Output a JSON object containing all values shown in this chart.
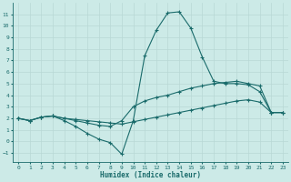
{
  "xlabel": "Humidex (Indice chaleur)",
  "background_color": "#cceae7",
  "grid_color": "#b8d8d5",
  "line_color": "#1a6b6b",
  "x_ticks": [
    0,
    1,
    2,
    3,
    4,
    5,
    6,
    7,
    8,
    9,
    10,
    11,
    12,
    13,
    14,
    15,
    16,
    17,
    18,
    19,
    20,
    21,
    22,
    23
  ],
  "y_ticks": [
    -1,
    0,
    1,
    2,
    3,
    4,
    5,
    6,
    7,
    8,
    9,
    10,
    11
  ],
  "xlim": [
    -0.5,
    23.5
  ],
  "ylim": [
    -1.8,
    12.0
  ],
  "line_peak_x": [
    0,
    1,
    2,
    3,
    4,
    5,
    6,
    7,
    8,
    9,
    10,
    11,
    12,
    13,
    14,
    15,
    16,
    17,
    18,
    19,
    20,
    21,
    22,
    23
  ],
  "line_peak_y": [
    2.0,
    1.8,
    2.1,
    2.2,
    1.8,
    1.3,
    0.7,
    0.2,
    -0.1,
    -1.1,
    1.8,
    7.4,
    9.6,
    11.1,
    11.2,
    9.8,
    7.3,
    5.2,
    5.0,
    5.0,
    4.9,
    4.3,
    2.5,
    2.5
  ],
  "line_mid_x": [
    0,
    1,
    2,
    3,
    4,
    5,
    6,
    7,
    8,
    9,
    10,
    11,
    12,
    13,
    14,
    15,
    16,
    17,
    18,
    19,
    20,
    21,
    22,
    23
  ],
  "line_mid_y": [
    2.0,
    1.8,
    2.1,
    2.2,
    2.0,
    1.8,
    1.6,
    1.4,
    1.3,
    1.8,
    3.0,
    3.5,
    3.8,
    4.0,
    4.3,
    4.6,
    4.8,
    5.0,
    5.1,
    5.2,
    5.0,
    4.8,
    2.5,
    2.5
  ],
  "line_low_x": [
    0,
    1,
    2,
    3,
    4,
    5,
    6,
    7,
    8,
    9,
    10,
    11,
    12,
    13,
    14,
    15,
    16,
    17,
    18,
    19,
    20,
    21,
    22,
    23
  ],
  "line_low_y": [
    2.0,
    1.8,
    2.1,
    2.2,
    2.0,
    1.9,
    1.8,
    1.7,
    1.6,
    1.5,
    1.7,
    1.9,
    2.1,
    2.3,
    2.5,
    2.7,
    2.9,
    3.1,
    3.3,
    3.5,
    3.6,
    3.4,
    2.5,
    2.5
  ]
}
